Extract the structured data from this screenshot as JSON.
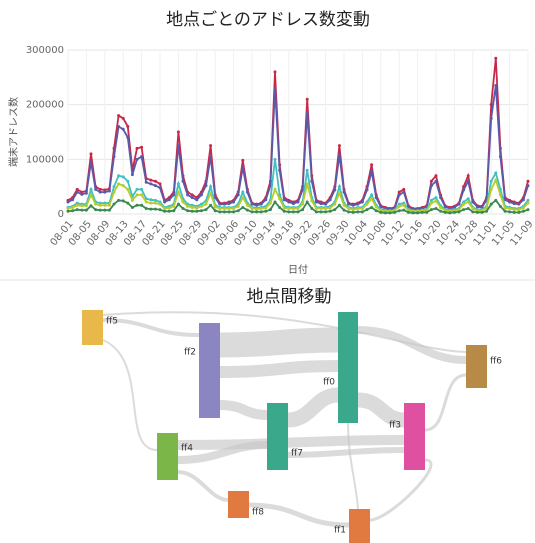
{
  "chart_data": {
    "type": "line",
    "title": "地点ごとのアドレス数変動",
    "ylabel": "端末アドレス数",
    "xlabel": "日付",
    "ylim": [
      0,
      300000
    ],
    "yticks": [
      0,
      100000,
      200000,
      300000
    ],
    "grid": true,
    "categories": [
      "08-01",
      null,
      null,
      null,
      "08-05",
      null,
      null,
      null,
      "08-09",
      null,
      null,
      null,
      "08-13",
      null,
      null,
      null,
      "08-17",
      null,
      null,
      null,
      "08-21",
      null,
      null,
      null,
      "08-25",
      null,
      null,
      null,
      "08-29",
      null,
      null,
      null,
      "09-02",
      null,
      null,
      null,
      "09-06",
      null,
      null,
      null,
      "09-10",
      null,
      null,
      null,
      "09-14",
      null,
      null,
      null,
      "09-18",
      null,
      null,
      null,
      "09-22",
      null,
      null,
      null,
      "09-26",
      null,
      null,
      null,
      "09-30",
      null,
      null,
      null,
      "10-04",
      null,
      null,
      null,
      "10-08",
      null,
      null,
      null,
      "10-12",
      null,
      null,
      null,
      "10-16",
      null,
      null,
      null,
      "10-20",
      null,
      null,
      null,
      "10-24",
      null,
      null,
      null,
      "10-28",
      null,
      null,
      null,
      "11-01",
      null,
      null,
      null,
      "11-05",
      null,
      null,
      null,
      "11-09"
    ],
    "series": [
      {
        "color": "#c8284a",
        "values": [
          25000,
          30000,
          45000,
          40000,
          42000,
          110000,
          50000,
          45000,
          44000,
          46000,
          120000,
          180000,
          175000,
          160000,
          80000,
          120000,
          122000,
          65000,
          62000,
          60000,
          55000,
          25000,
          30000,
          40000,
          150000,
          70000,
          40000,
          35000,
          30000,
          40000,
          60000,
          125000,
          35000,
          20000,
          20000,
          22000,
          25000,
          40000,
          98000,
          45000,
          20000,
          18000,
          20000,
          30000,
          60000,
          260000,
          90000,
          30000,
          25000,
          22000,
          25000,
          50000,
          210000,
          70000,
          25000,
          22000,
          20000,
          30000,
          50000,
          125000,
          45000,
          20000,
          18000,
          20000,
          25000,
          50000,
          90000,
          35000,
          15000,
          12000,
          10000,
          12000,
          40000,
          45000,
          15000,
          10000,
          10000,
          12000,
          15000,
          60000,
          70000,
          35000,
          15000,
          12000,
          14000,
          20000,
          50000,
          70000,
          25000,
          15000,
          14000,
          30000,
          200000,
          285000,
          120000,
          30000,
          25000,
          22000,
          20000,
          30000,
          60000
        ]
      },
      {
        "color": "#5a5aa8",
        "values": [
          22000,
          26000,
          40000,
          36000,
          38000,
          95000,
          45000,
          40000,
          40000,
          42000,
          105000,
          160000,
          155000,
          140000,
          72000,
          100000,
          105000,
          58000,
          55000,
          52000,
          48000,
          22000,
          26000,
          35000,
          125000,
          60000,
          35000,
          30000,
          26000,
          35000,
          52000,
          105000,
          30000,
          18000,
          18000,
          19000,
          22000,
          35000,
          85000,
          40000,
          18000,
          16000,
          18000,
          26000,
          52000,
          230000,
          80000,
          26000,
          22000,
          19000,
          22000,
          44000,
          185000,
          60000,
          22000,
          19000,
          18000,
          26000,
          44000,
          108000,
          40000,
          18000,
          16000,
          18000,
          22000,
          44000,
          78000,
          30000,
          13000,
          10000,
          9000,
          10000,
          35000,
          40000,
          13000,
          9000,
          9000,
          10000,
          13000,
          52000,
          60000,
          30000,
          13000,
          10000,
          12000,
          18000,
          44000,
          60000,
          22000,
          13000,
          12000,
          26000,
          175000,
          235000,
          105000,
          26000,
          22000,
          19000,
          18000,
          26000,
          52000
        ]
      },
      {
        "color": "#40c0c0",
        "values": [
          12000,
          14000,
          20000,
          18000,
          18000,
          45000,
          22000,
          20000,
          20000,
          20000,
          50000,
          70000,
          68000,
          60000,
          32000,
          45000,
          45000,
          28000,
          26000,
          25000,
          22000,
          12000,
          14000,
          18000,
          55000,
          28000,
          18000,
          16000,
          14000,
          18000,
          24000,
          50000,
          16000,
          12000,
          12000,
          12000,
          12000,
          18000,
          40000,
          20000,
          12000,
          11000,
          12000,
          14000,
          25000,
          100000,
          35000,
          14000,
          12000,
          12000,
          12000,
          22000,
          80000,
          30000,
          12000,
          12000,
          12000,
          14000,
          22000,
          50000,
          20000,
          12000,
          10000,
          12000,
          12000,
          22000,
          35000,
          16000,
          8000,
          7000,
          6000,
          7000,
          18000,
          20000,
          8000,
          6000,
          6000,
          7000,
          8000,
          25000,
          30000,
          15000,
          8000,
          7000,
          8000,
          10000,
          22000,
          28000,
          12000,
          8000,
          8000,
          14000,
          60000,
          75000,
          45000,
          14000,
          12000,
          10000,
          10000,
          14000,
          25000
        ]
      },
      {
        "color": "#b8cc30",
        "values": [
          10000,
          12000,
          16000,
          15000,
          15000,
          35000,
          18000,
          16000,
          16000,
          16000,
          40000,
          55000,
          52000,
          45000,
          25000,
          35000,
          35000,
          22000,
          20000,
          20000,
          18000,
          10000,
          11000,
          14000,
          40000,
          22000,
          14000,
          12000,
          11000,
          14000,
          18000,
          38000,
          13000,
          10000,
          10000,
          10000,
          10000,
          14000,
          30000,
          16000,
          10000,
          9000,
          10000,
          11000,
          20000,
          45000,
          28000,
          11000,
          10000,
          10000,
          10000,
          18000,
          55000,
          24000,
          10000,
          10000,
          10000,
          11000,
          18000,
          38000,
          16000,
          10000,
          8000,
          10000,
          10000,
          18000,
          28000,
          13000,
          6000,
          5000,
          5000,
          6000,
          14000,
          16000,
          6000,
          5000,
          5000,
          6000,
          6000,
          20000,
          24000,
          12000,
          6000,
          5000,
          6000,
          8000,
          18000,
          22000,
          10000,
          6000,
          6000,
          11000,
          45000,
          62000,
          35000,
          11000,
          10000,
          8000,
          8000,
          11000,
          20000
        ]
      },
      {
        "color": "#3a8a50",
        "values": [
          5000,
          6000,
          8000,
          7000,
          7000,
          15000,
          8000,
          7000,
          7000,
          7000,
          18000,
          25000,
          24000,
          20000,
          12000,
          16000,
          16000,
          10000,
          9000,
          9000,
          8000,
          5000,
          5000,
          6000,
          18000,
          10000,
          6000,
          5000,
          5000,
          6000,
          8000,
          16000,
          6000,
          4000,
          4000,
          4000,
          4000,
          6000,
          12000,
          7000,
          4000,
          4000,
          4000,
          5000,
          8000,
          22000,
          12000,
          5000,
          4000,
          4000,
          4000,
          8000,
          22000,
          10000,
          4000,
          4000,
          4000,
          5000,
          8000,
          16000,
          7000,
          4000,
          3000,
          4000,
          4000,
          8000,
          12000,
          6000,
          3000,
          2000,
          2000,
          3000,
          6000,
          7000,
          3000,
          2000,
          2000,
          3000,
          3000,
          8000,
          10000,
          5000,
          3000,
          2000,
          3000,
          4000,
          8000,
          10000,
          4000,
          3000,
          3000,
          5000,
          18000,
          25000,
          14000,
          5000,
          4000,
          3000,
          3000,
          5000,
          8000
        ]
      }
    ]
  },
  "sankey": {
    "title": "地点間移動",
    "nodes": [
      "ff5",
      "ff2",
      "ff0",
      "ff6",
      "ff4",
      "ff7",
      "ff3",
      "ff8",
      "ff1"
    ]
  }
}
